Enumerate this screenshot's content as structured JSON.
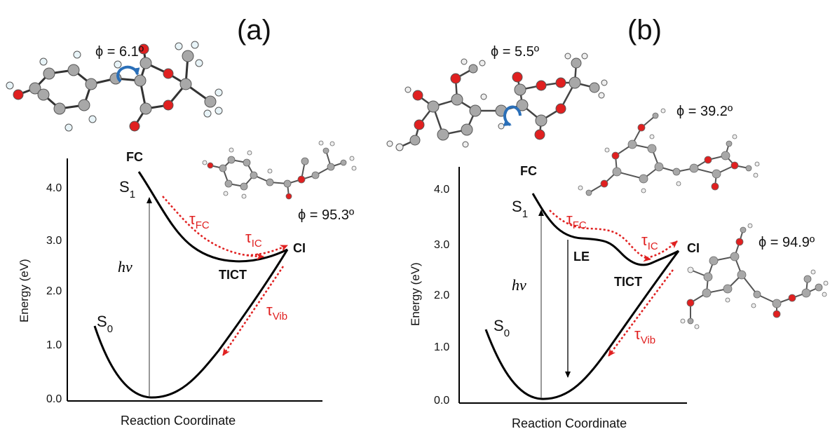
{
  "panels": [
    {
      "id": "a",
      "panel_label": "(a)",
      "phi_top": "ϕ = 6.1º",
      "phi_mid": "",
      "phi_right": "ϕ = 95.3º",
      "fc": "FC",
      "s1": "S",
      "s1_sub": "1",
      "s0": "S",
      "s0_sub": "0",
      "le": "",
      "tict": "TICT",
      "ci": "CI",
      "hv": "hν",
      "tau_fc": "τ",
      "tau_fc_sub": "FC",
      "tau_ic": "τ",
      "tau_ic_sub": "IC",
      "tau_vib": "τ",
      "tau_vib_sub": "Vib",
      "ylabel": "Energy (eV)",
      "xlabel": "Reaction Coordinate",
      "yticks": [
        "4.0",
        "3.0",
        "2.0",
        "1.0",
        "0.0"
      ]
    },
    {
      "id": "b",
      "panel_label": "(b)",
      "phi_top": "ϕ = 5.5º",
      "phi_mid": "ϕ = 39.2º",
      "phi_right": "ϕ = 94.9º",
      "fc": "FC",
      "s1": "S",
      "s1_sub": "1",
      "s0": "S",
      "s0_sub": "0",
      "le": "LE",
      "tict": "TICT",
      "ci": "CI",
      "hv": "hν",
      "tau_fc": "τ",
      "tau_fc_sub": "FC",
      "tau_ic": "τ",
      "tau_ic_sub": "IC",
      "tau_vib": "τ",
      "tau_vib_sub": "Vib",
      "ylabel": "Energy (eV)",
      "xlabel": "Reaction Coordinate",
      "yticks": [
        "4.0",
        "3.0",
        "2.0",
        "1.0",
        "0.0"
      ]
    }
  ],
  "colors": {
    "curve": "#000000",
    "pathway": "#e02020",
    "carbon": "#a8a8a8",
    "oxygen": "#e02020",
    "hydrogen": "#e8f4f8",
    "rotation_arrow": "#2a6fb8"
  }
}
